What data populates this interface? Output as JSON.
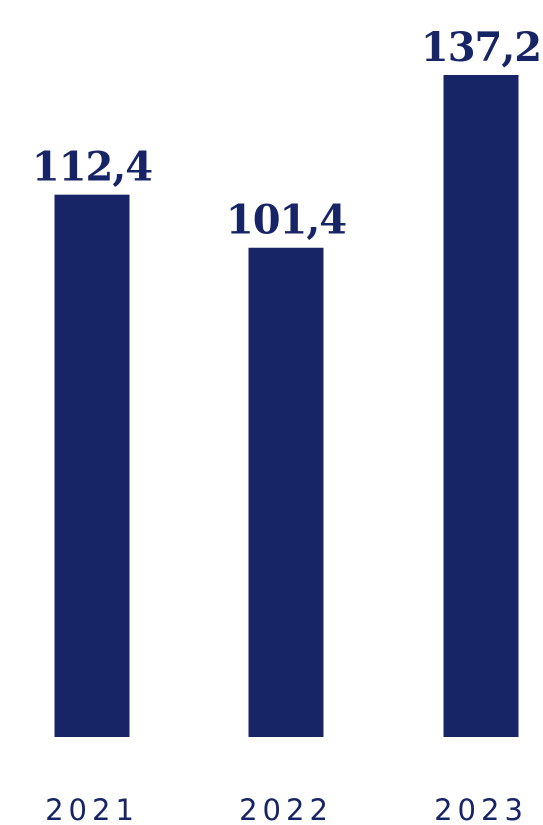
{
  "colors": {
    "bar": "#172466",
    "value_text": "#172466",
    "category_text": "#172466",
    "background": "#ffffff"
  },
  "chart_data": {
    "type": "bar",
    "categories": [
      "2021",
      "2022",
      "2023"
    ],
    "values": [
      112.4,
      101.4,
      137.2
    ],
    "value_labels": [
      "112,4",
      "101,4",
      "137,2"
    ],
    "ylim": [
      0,
      137.2
    ],
    "grid": false,
    "axes_visible": false
  }
}
